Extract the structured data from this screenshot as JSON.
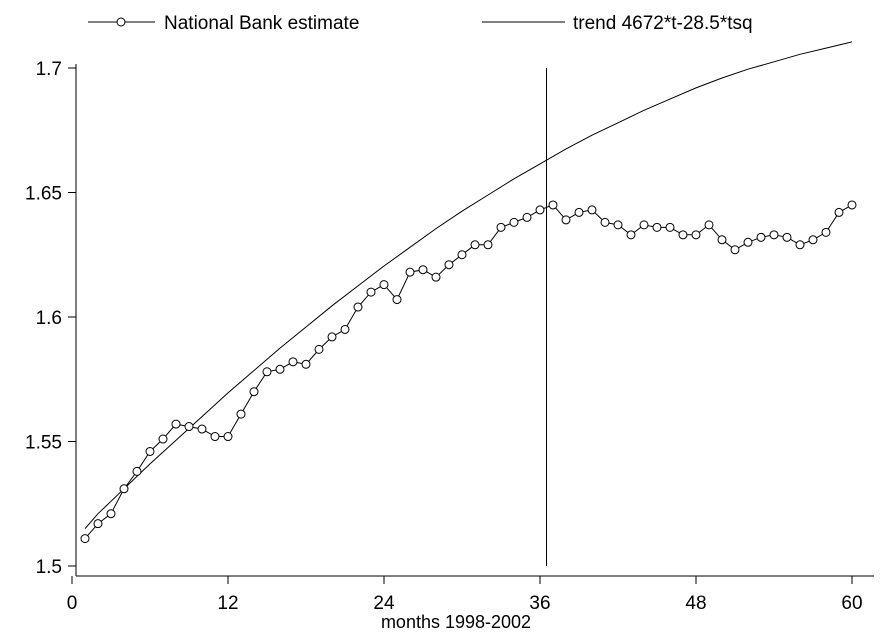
{
  "chart_data": {
    "type": "line",
    "title": "",
    "xlabel": "months 1998-2002",
    "ylabel": "",
    "xlim": [
      0,
      61.5
    ],
    "ylim": [
      1.495,
      1.71
    ],
    "xticks": [
      0,
      12,
      24,
      36,
      48,
      60
    ],
    "yticks": [
      1.5,
      1.55,
      1.6,
      1.65,
      1.7
    ],
    "ytick_labels": [
      "1.5",
      "1.55",
      "1.6",
      "1.65",
      "1.7"
    ],
    "grid": false,
    "legend_position": "top",
    "vertical_line": {
      "x": 36.5,
      "y_from": 1.5,
      "y_to": 1.7
    },
    "series": [
      {
        "name": "National Bank estimate",
        "marker": "circle",
        "x": [
          1,
          2,
          3,
          4,
          5,
          6,
          7,
          8,
          9,
          10,
          11,
          12,
          13,
          14,
          15,
          16,
          17,
          18,
          19,
          20,
          21,
          22,
          23,
          24,
          25,
          26,
          27,
          28,
          29,
          30,
          31,
          32,
          33,
          34,
          35,
          36,
          37,
          38,
          39,
          40,
          41,
          42,
          43,
          44,
          45,
          46,
          47,
          48,
          49,
          50,
          51,
          52,
          53,
          54,
          55,
          56,
          57,
          58,
          59,
          60
        ],
        "y": [
          1.511,
          1.517,
          1.521,
          1.531,
          1.538,
          1.546,
          1.551,
          1.557,
          1.556,
          1.555,
          1.552,
          1.552,
          1.561,
          1.57,
          1.578,
          1.579,
          1.582,
          1.581,
          1.587,
          1.592,
          1.595,
          1.604,
          1.61,
          1.613,
          1.607,
          1.618,
          1.619,
          1.616,
          1.621,
          1.625,
          1.629,
          1.629,
          1.636,
          1.638,
          1.64,
          1.643,
          1.645,
          1.639,
          1.642,
          1.643,
          1.638,
          1.637,
          1.633,
          1.637,
          1.636,
          1.636,
          1.633,
          1.633,
          1.637,
          1.631,
          1.627,
          1.63,
          1.632,
          1.633,
          1.632,
          1.629,
          1.631,
          1.634,
          1.642,
          1.645
        ]
      },
      {
        "name": "trend 4672*t-28.5*tsq",
        "marker": "none",
        "x": [
          1,
          2,
          4,
          6,
          8,
          10,
          12,
          14,
          16,
          18,
          20,
          22,
          24,
          26,
          28,
          30,
          32,
          34,
          36,
          38,
          40,
          42,
          44,
          46,
          48,
          50,
          52,
          54,
          56,
          58,
          60
        ],
        "y": [
          1.515,
          1.521,
          1.531,
          1.541,
          1.5505,
          1.56,
          1.5695,
          1.5785,
          1.5875,
          1.596,
          1.6045,
          1.6125,
          1.6205,
          1.628,
          1.6355,
          1.6425,
          1.649,
          1.6555,
          1.6615,
          1.6675,
          1.673,
          1.678,
          1.683,
          1.6875,
          1.692,
          1.696,
          1.6995,
          1.7025,
          1.7055,
          1.708,
          1.7105
        ]
      }
    ]
  },
  "colors": {
    "line": "#000000",
    "background": "#ffffff"
  }
}
